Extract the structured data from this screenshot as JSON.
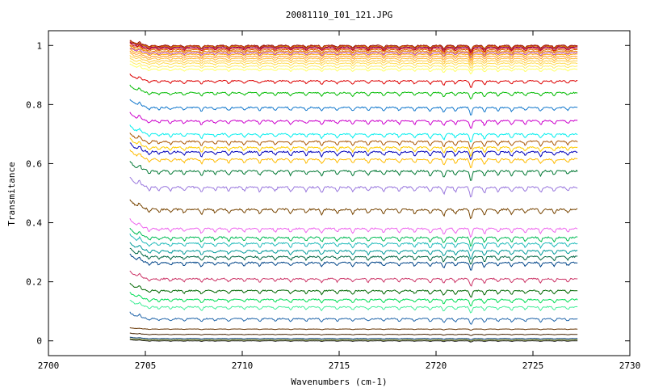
{
  "chart_data": {
    "type": "line",
    "title": "20081110_I01_121.JPG",
    "xlabel": "Wavenumbers (cm-1)",
    "ylabel": "Transmitance",
    "xlim": [
      2700,
      2730
    ],
    "ylim": [
      -0.05,
      1.05
    ],
    "x_ticks": [
      "2700",
      "2705",
      "2710",
      "2715",
      "2720",
      "2725",
      "2730"
    ],
    "y_ticks": [
      "0",
      "0.2",
      "0.4",
      "0.6",
      "0.8",
      "1"
    ],
    "x_range_data": [
      2704.2,
      2727.3
    ],
    "grid": false,
    "legend": "none",
    "series": [
      {
        "baseline": 1.0,
        "color": "#8b0000"
      },
      {
        "baseline": 0.998,
        "color": "#cc3300"
      },
      {
        "baseline": 0.996,
        "color": "#cc8800"
      },
      {
        "baseline": 0.994,
        "color": "#990066"
      },
      {
        "baseline": 0.99,
        "color": "#cc0000"
      },
      {
        "baseline": 0.985,
        "color": "#dd6600"
      },
      {
        "baseline": 0.98,
        "color": "#ee8800"
      },
      {
        "baseline": 0.975,
        "color": "#bb44aa"
      },
      {
        "baseline": 0.97,
        "color": "#ffaa00"
      },
      {
        "baseline": 0.963,
        "color": "#ff9933"
      },
      {
        "baseline": 0.956,
        "color": "#ffbb33"
      },
      {
        "baseline": 0.948,
        "color": "#ffcc44"
      },
      {
        "baseline": 0.94,
        "color": "#ffdd55"
      },
      {
        "baseline": 0.93,
        "color": "#ffee66"
      },
      {
        "baseline": 0.92,
        "color": "#ffff66"
      },
      {
        "baseline": 0.88,
        "color": "#dd0000"
      },
      {
        "baseline": 0.84,
        "color": "#00bb00"
      },
      {
        "baseline": 0.79,
        "color": "#1177cc"
      },
      {
        "baseline": 0.745,
        "color": "#cc00cc"
      },
      {
        "baseline": 0.7,
        "color": "#00eeee"
      },
      {
        "baseline": 0.675,
        "color": "#aa5500"
      },
      {
        "baseline": 0.655,
        "color": "#ffcc00"
      },
      {
        "baseline": 0.64,
        "color": "#0000bb"
      },
      {
        "baseline": 0.615,
        "color": "#ffbb00"
      },
      {
        "baseline": 0.575,
        "color": "#007733"
      },
      {
        "baseline": 0.52,
        "color": "#9977dd"
      },
      {
        "baseline": 0.445,
        "color": "#774400"
      },
      {
        "baseline": 0.38,
        "color": "#ee66ee"
      },
      {
        "baseline": 0.35,
        "color": "#00bb55"
      },
      {
        "baseline": 0.33,
        "color": "#22bbbb"
      },
      {
        "baseline": 0.305,
        "color": "#009999"
      },
      {
        "baseline": 0.285,
        "color": "#006644"
      },
      {
        "baseline": 0.265,
        "color": "#004488"
      },
      {
        "baseline": 0.21,
        "color": "#cc3366"
      },
      {
        "baseline": 0.17,
        "color": "#006600"
      },
      {
        "baseline": 0.14,
        "color": "#00dd55"
      },
      {
        "baseline": 0.115,
        "color": "#44ee99"
      },
      {
        "baseline": 0.075,
        "color": "#2266aa"
      },
      {
        "baseline": 0.04,
        "color": "#663300"
      },
      {
        "baseline": 0.022,
        "color": "#442200"
      },
      {
        "baseline": 0.008,
        "color": "#003366"
      },
      {
        "baseline": 0.003,
        "color": "#556600"
      },
      {
        "baseline": 0.0,
        "color": "#333333"
      }
    ]
  }
}
